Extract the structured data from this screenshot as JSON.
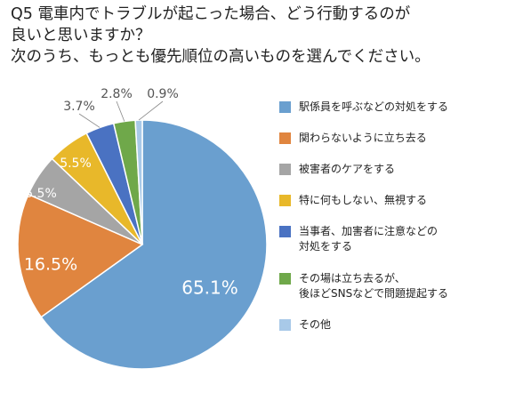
{
  "chart_data": {
    "type": "pie",
    "title_lines": [
      "Q5 電車内でトラブルが起こった場合、どう行動するのが",
      "良いと思いますか？",
      "次のうち、もっとも優先順位の高いものを選んでください。"
    ],
    "slices": [
      {
        "label": "駅係員を呼ぶなどの対処をする",
        "value": 65.1,
        "display": "65.1%",
        "color": "#6a9fcf"
      },
      {
        "label": "関わらないように立ち去る",
        "value": 16.5,
        "display": "16.5%",
        "color": "#e0853f"
      },
      {
        "label": "被害者のケアをする",
        "value": 5.5,
        "display": "5.5%",
        "color": "#a5a5a5"
      },
      {
        "label": "特に何もしない、無視する",
        "value": 5.5,
        "display": "5.5%",
        "color": "#e8b82a"
      },
      {
        "label": "当事者、加害者に注意などの\n対処をする",
        "value": 3.7,
        "display": "3.7%",
        "color": "#4a72c2"
      },
      {
        "label": "その場は立ち去るが、\n後ほどSNSなどで問題提起する",
        "value": 2.8,
        "display": "2.8%",
        "color": "#6fa84a"
      },
      {
        "label": "その他",
        "value": 0.9,
        "display": "0.9%",
        "color": "#a8c9e8"
      }
    ],
    "start_angle": "12 o'clock",
    "direction": "clockwise",
    "legend_position": "right"
  }
}
